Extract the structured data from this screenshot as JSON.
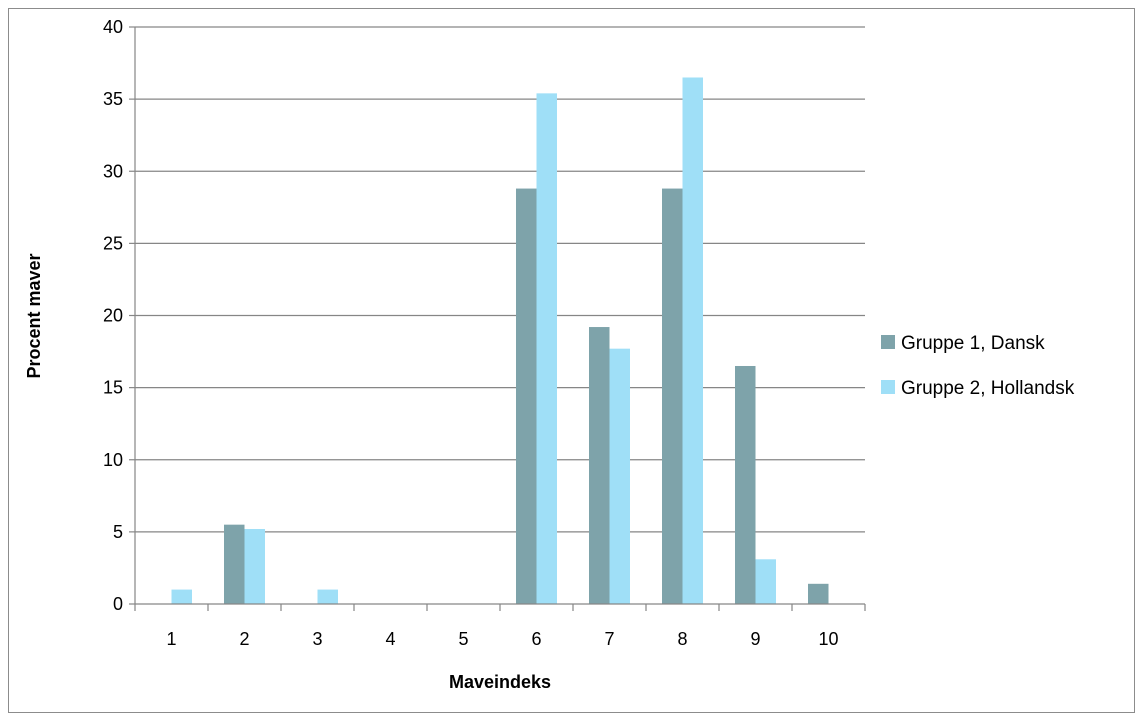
{
  "chart_data": {
    "type": "bar",
    "xlabel": "Maveindeks",
    "ylabel": "Procent maver",
    "ylim": [
      0,
      40
    ],
    "ytick_step": 5,
    "grid": true,
    "legend_position": "right",
    "categories": [
      "1",
      "2",
      "3",
      "4",
      "5",
      "6",
      "7",
      "8",
      "9",
      "10"
    ],
    "series": [
      {
        "name": "Gruppe 1, Dansk",
        "color": "#7ea3aa",
        "values": [
          0,
          5.5,
          0,
          0,
          0,
          28.8,
          19.2,
          28.8,
          16.5,
          1.4
        ]
      },
      {
        "name": "Gruppe 2, Hollandsk",
        "color": "#9fdff7",
        "values": [
          1.0,
          5.2,
          1.0,
          0,
          0,
          35.4,
          17.7,
          36.5,
          3.1,
          0
        ]
      }
    ]
  }
}
